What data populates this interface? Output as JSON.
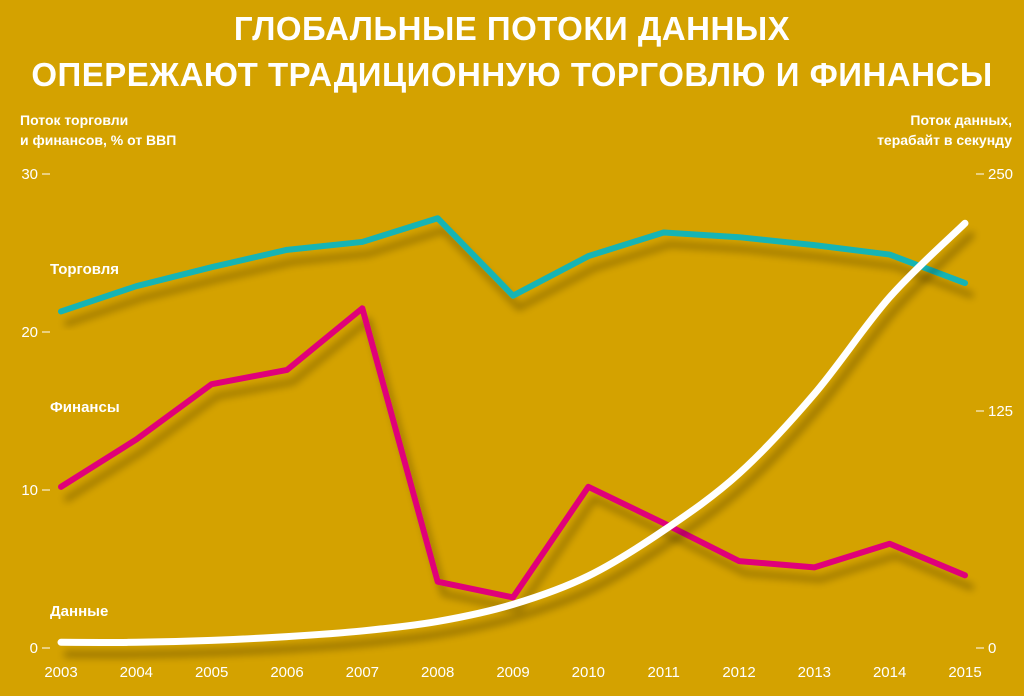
{
  "header": {
    "title_line1": "ГЛОБАЛЬНЫЕ ПОТОКИ ДАННЫХ",
    "title_line2": "ОПЕРЕЖАЮТ ТРАДИЦИОННУЮ ТОРГОВЛЮ И ФИНАНСЫ"
  },
  "chart_data": {
    "type": "line",
    "title": "ГЛОБАЛЬНЫЕ ПОТОКИ ДАННЫХ ОПЕРЕЖАЮТ ТРАДИЦИОННУЮ ТОРГОВЛЮ И ФИНАНСЫ",
    "ylabel_left": [
      "Поток торговли",
      "и финансов, % от ВВП"
    ],
    "ylabel_right": [
      "Поток данных,",
      "терабайт в секунду"
    ],
    "x": [
      "2003",
      "2004",
      "2005",
      "2006",
      "2007",
      "2008",
      "2009",
      "2010",
      "2011",
      "2012",
      "2013",
      "2014",
      "2015"
    ],
    "ylim_left": [
      0,
      30
    ],
    "ylim_right": [
      0,
      250
    ],
    "yticks_left": [
      "0",
      "10",
      "20",
      "30"
    ],
    "yticks_right": [
      "0",
      "125",
      "250"
    ],
    "series": [
      {
        "name": "Торговля",
        "axis": "left",
        "color": "#14B4B4",
        "values": [
          21.3,
          22.9,
          24.1,
          25.2,
          25.7,
          27.2,
          22.3,
          24.8,
          26.3,
          26.0,
          25.5,
          24.9,
          23.1
        ]
      },
      {
        "name": "Финансы",
        "axis": "left",
        "color": "#E0067A",
        "values": [
          10.2,
          13.2,
          16.7,
          17.6,
          21.5,
          4.2,
          3.2,
          10.2,
          7.9,
          5.5,
          5.1,
          6.6,
          4.6
        ]
      },
      {
        "name": "Данные",
        "axis": "right",
        "color": "#FFFFFF",
        "values": [
          3,
          3,
          4,
          6,
          9,
          14,
          23,
          38,
          62,
          92,
          134,
          185,
          224
        ]
      }
    ]
  }
}
